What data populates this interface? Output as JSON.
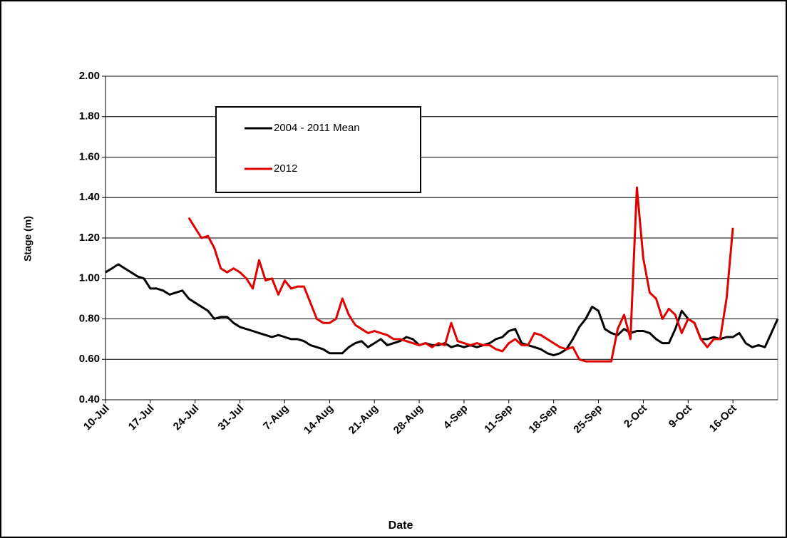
{
  "chart_data": {
    "type": "line",
    "x_label": "Date",
    "y_label": "Stage (m)",
    "categories": [
      "10-Jul",
      "11-Jul",
      "12-Jul",
      "13-Jul",
      "14-Jul",
      "15-Jul",
      "16-Jul",
      "17-Jul",
      "18-Jul",
      "19-Jul",
      "20-Jul",
      "21-Jul",
      "22-Jul",
      "23-Jul",
      "24-Jul",
      "25-Jul",
      "26-Jul",
      "27-Jul",
      "28-Jul",
      "29-Jul",
      "30-Jul",
      "31-Jul",
      "1-Aug",
      "2-Aug",
      "3-Aug",
      "4-Aug",
      "5-Aug",
      "6-Aug",
      "7-Aug",
      "8-Aug",
      "9-Aug",
      "10-Aug",
      "11-Aug",
      "12-Aug",
      "13-Aug",
      "14-Aug",
      "15-Aug",
      "16-Aug",
      "17-Aug",
      "18-Aug",
      "19-Aug",
      "20-Aug",
      "21-Aug",
      "22-Aug",
      "23-Aug",
      "24-Aug",
      "25-Aug",
      "26-Aug",
      "27-Aug",
      "28-Aug",
      "29-Aug",
      "30-Aug",
      "31-Aug",
      "1-Sep",
      "2-Sep",
      "3-Sep",
      "4-Sep",
      "5-Sep",
      "6-Sep",
      "7-Sep",
      "8-Sep",
      "9-Sep",
      "10-Sep",
      "11-Sep",
      "12-Sep",
      "13-Sep",
      "14-Sep",
      "15-Sep",
      "16-Sep",
      "17-Sep",
      "18-Sep",
      "19-Sep",
      "20-Sep",
      "21-Sep",
      "22-Sep",
      "23-Sep",
      "24-Sep",
      "25-Sep",
      "26-Sep",
      "27-Sep",
      "28-Sep",
      "29-Sep",
      "30-Sep",
      "1-Oct",
      "2-Oct",
      "3-Oct",
      "4-Oct",
      "5-Oct",
      "6-Oct",
      "7-Oct",
      "8-Oct",
      "9-Oct",
      "10-Oct",
      "11-Oct",
      "12-Oct",
      "13-Oct",
      "14-Oct",
      "15-Oct",
      "16-Oct",
      "17-Oct",
      "18-Oct",
      "19-Oct",
      "20-Oct",
      "21-Oct",
      "22-Oct",
      "23-Oct"
    ],
    "xticks": [
      "10-Jul",
      "17-Jul",
      "24-Jul",
      "31-Jul",
      "7-Aug",
      "14-Aug",
      "21-Aug",
      "28-Aug",
      "4-Sep",
      "11-Sep",
      "18-Sep",
      "25-Sep",
      "2-Oct",
      "9-Oct",
      "16-Oct"
    ],
    "ylim": [
      0.4,
      2.0
    ],
    "yticks": [
      {
        "value": 0.4,
        "label": "0.40"
      },
      {
        "value": 0.6,
        "label": "0.60"
      },
      {
        "value": 0.8,
        "label": "0.80"
      },
      {
        "value": 1.0,
        "label": "1.00"
      },
      {
        "value": 1.2,
        "label": "1.20"
      },
      {
        "value": 1.4,
        "label": "1.40"
      },
      {
        "value": 1.6,
        "label": "1.60"
      },
      {
        "value": 1.8,
        "label": "1.80"
      },
      {
        "value": 2.0,
        "label": "2.00"
      }
    ],
    "grid": true,
    "series": [
      {
        "name": "2004 - 2011 Mean",
        "color": "#000000",
        "values": [
          1.03,
          1.05,
          1.07,
          1.05,
          1.03,
          1.01,
          1.0,
          0.95,
          0.95,
          0.94,
          0.92,
          0.93,
          0.94,
          0.9,
          0.88,
          0.86,
          0.84,
          0.8,
          0.81,
          0.81,
          0.78,
          0.76,
          0.75,
          0.74,
          0.73,
          0.72,
          0.71,
          0.72,
          0.71,
          0.7,
          0.7,
          0.69,
          0.67,
          0.66,
          0.65,
          0.63,
          0.63,
          0.63,
          0.66,
          0.68,
          0.69,
          0.66,
          0.68,
          0.7,
          0.67,
          0.68,
          0.69,
          0.71,
          0.7,
          0.67,
          0.68,
          0.67,
          0.67,
          0.68,
          0.66,
          0.67,
          0.66,
          0.67,
          0.66,
          0.67,
          0.68,
          0.7,
          0.71,
          0.74,
          0.75,
          0.68,
          0.67,
          0.66,
          0.65,
          0.63,
          0.62,
          0.63,
          0.65,
          0.7,
          0.76,
          0.8,
          0.86,
          0.84,
          0.75,
          0.73,
          0.72,
          0.75,
          0.73,
          0.74,
          0.74,
          0.73,
          0.7,
          0.68,
          0.68,
          0.75,
          0.84,
          0.8,
          0.78,
          0.7,
          0.7,
          0.71,
          0.7,
          0.71,
          0.71,
          0.73,
          0.68,
          0.66,
          0.67,
          0.66,
          0.73,
          0.8
        ]
      },
      {
        "name": "2012",
        "color": "#e00000",
        "values": [
          null,
          null,
          null,
          null,
          null,
          null,
          null,
          null,
          null,
          null,
          null,
          null,
          null,
          1.3,
          1.25,
          1.2,
          1.21,
          1.15,
          1.05,
          1.03,
          1.05,
          1.03,
          1.0,
          0.95,
          1.09,
          0.99,
          1.0,
          0.92,
          0.99,
          0.95,
          0.96,
          0.96,
          0.88,
          0.8,
          0.78,
          0.78,
          0.8,
          0.9,
          0.82,
          0.77,
          0.75,
          0.73,
          0.74,
          0.73,
          0.72,
          0.7,
          0.7,
          0.69,
          0.68,
          0.67,
          0.68,
          0.66,
          0.68,
          0.67,
          0.78,
          0.69,
          0.68,
          0.67,
          0.68,
          0.67,
          0.67,
          0.65,
          0.64,
          0.68,
          0.7,
          0.67,
          0.67,
          0.73,
          0.72,
          0.7,
          0.68,
          0.66,
          0.65,
          0.66,
          0.6,
          0.59,
          0.59,
          0.59,
          0.59,
          0.59,
          0.75,
          0.82,
          0.7,
          1.45,
          1.1,
          0.93,
          0.9,
          0.8,
          0.85,
          0.82,
          0.73,
          0.8,
          0.78,
          0.7,
          0.66,
          0.7,
          0.7,
          0.9,
          1.25,
          null,
          null,
          null,
          null,
          null,
          null,
          null
        ]
      }
    ]
  }
}
